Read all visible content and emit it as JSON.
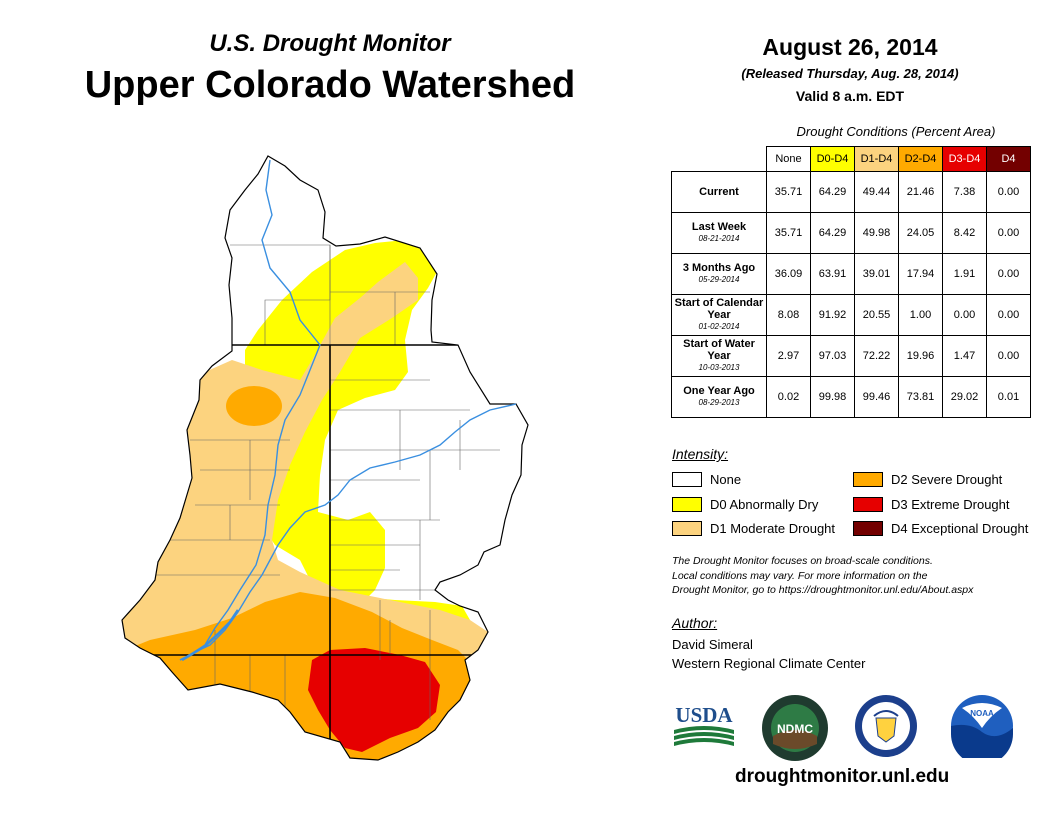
{
  "header": {
    "subtitle": "U.S. Drought Monitor",
    "title": "Upper Colorado Watershed",
    "date": "August 26, 2014",
    "released": "(Released Thursday, Aug. 28, 2014)",
    "valid": "Valid 8 a.m. EDT"
  },
  "table": {
    "caption": "Drought Conditions (Percent Area)",
    "columns": [
      {
        "label": "None",
        "color": "#ffffff",
        "text_color": "#000000"
      },
      {
        "label": "D0-D4",
        "color": "#ffff00",
        "text_color": "#000000"
      },
      {
        "label": "D1-D4",
        "color": "#fcd37f",
        "text_color": "#000000"
      },
      {
        "label": "D2-D4",
        "color": "#ffaa00",
        "text_color": "#000000"
      },
      {
        "label": "D3-D4",
        "color": "#e60000",
        "text_color": "#ffffff"
      },
      {
        "label": "D4",
        "color": "#730000",
        "text_color": "#ffffff"
      }
    ],
    "rows": [
      {
        "label": "Current",
        "sublabel": "",
        "values": [
          "35.71",
          "64.29",
          "49.44",
          "21.46",
          "7.38",
          "0.00"
        ]
      },
      {
        "label": "Last Week",
        "sublabel": "08-21-2014",
        "values": [
          "35.71",
          "64.29",
          "49.98",
          "24.05",
          "8.42",
          "0.00"
        ]
      },
      {
        "label": "3 Months Ago",
        "sublabel": "05-29-2014",
        "values": [
          "36.09",
          "63.91",
          "39.01",
          "17.94",
          "1.91",
          "0.00"
        ]
      },
      {
        "label": "Start of Calendar Year",
        "sublabel": "01-02-2014",
        "values": [
          "8.08",
          "91.92",
          "20.55",
          "1.00",
          "0.00",
          "0.00"
        ]
      },
      {
        "label": "Start of Water Year",
        "sublabel": "10-03-2013",
        "values": [
          "2.97",
          "97.03",
          "72.22",
          "19.96",
          "1.47",
          "0.00"
        ]
      },
      {
        "label": "One Year Ago",
        "sublabel": "08-29-2013",
        "values": [
          "0.02",
          "99.98",
          "99.46",
          "73.81",
          "29.02",
          "0.01"
        ]
      }
    ]
  },
  "legend": {
    "heading": "Intensity:",
    "items": [
      {
        "label": "None",
        "color": "#ffffff"
      },
      {
        "label": "D0 Abnormally Dry",
        "color": "#ffff00"
      },
      {
        "label": "D1 Moderate Drought",
        "color": "#fcd37f"
      },
      {
        "label": "D2 Severe Drought",
        "color": "#ffaa00"
      },
      {
        "label": "D3 Extreme Drought",
        "color": "#e60000"
      },
      {
        "label": "D4 Exceptional Drought",
        "color": "#730000"
      }
    ]
  },
  "disclaimer": {
    "line1": "The Drought Monitor focuses on broad-scale conditions.",
    "line2": "Local conditions may vary. For more information on the",
    "line3": "Drought Monitor, go to https://droughtmonitor.unl.edu/About.aspx"
  },
  "author": {
    "heading": "Author:",
    "name": "David Simeral",
    "org": "Western Regional Climate Center"
  },
  "logos": {
    "usda": "USDA",
    "ndmc": "NDMC",
    "noaa": "NOAA"
  },
  "website": "droughtmonitor.unl.edu",
  "colors": {
    "river": "#3a8fe0",
    "boundary": "#000000"
  }
}
